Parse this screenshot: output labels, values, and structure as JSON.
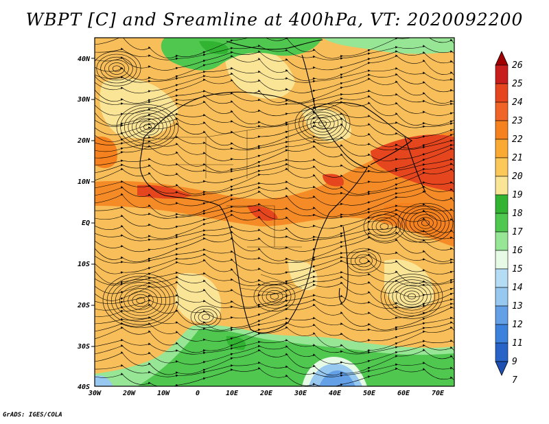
{
  "title": "WBPT [C] and Sreamline at 400hPa, VT: 2020092200",
  "credit": "GrADS: IGES/COLA",
  "map": {
    "lat_labels": [
      "40N",
      "30N",
      "20N",
      "10N",
      "EQ",
      "10S",
      "20S",
      "30S",
      "40S"
    ],
    "lon_labels": [
      "30W",
      "20W",
      "10W",
      "0",
      "10E",
      "20E",
      "30E",
      "40E",
      "50E",
      "60E",
      "70E"
    ]
  },
  "colorbar": {
    "levels": [
      "26",
      "25",
      "24",
      "23",
      "22",
      "21",
      "20",
      "19",
      "18",
      "17",
      "16",
      "15",
      "14",
      "13",
      "12",
      "11",
      "9",
      "7"
    ],
    "colors": [
      "#a00000",
      "#c81e1e",
      "#e6461e",
      "#f06428",
      "#f5821e",
      "#faaa32",
      "#fcc85a",
      "#fae496",
      "#32b432",
      "#50c850",
      "#96e696",
      "#e6fae6",
      "#b4dcf5",
      "#96c8f0",
      "#64a0e6",
      "#3c82dc",
      "#2864c8",
      "#1e50b4"
    ]
  },
  "fields": {
    "colors": {
      "warm": "#f8be5a",
      "hot": "#f5821e",
      "very_hot": "#e6461e",
      "pale": "#fae496",
      "green": "#50c850",
      "light_green": "#96e696",
      "blue": "#64a0e6"
    }
  }
}
